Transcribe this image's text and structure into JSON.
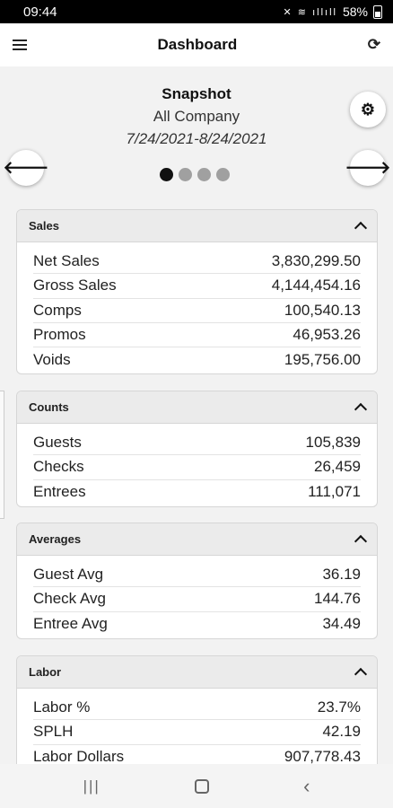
{
  "status_bar": {
    "time": "09:44",
    "icons": "✕ 📶 ıllıll",
    "battery": "58%"
  },
  "app_bar": {
    "title": "Dashboard",
    "menu_icon": "hamburger-icon",
    "refresh_icon": "refresh-icon"
  },
  "snapshot": {
    "title": "Snapshot",
    "company": "All Company",
    "date_range": "7/24/2021-8/24/2021"
  },
  "pager": {
    "total": 4,
    "active": 0
  },
  "cards": [
    {
      "title": "Sales",
      "rows": [
        {
          "label": "Net Sales",
          "value": "3,830,299.50"
        },
        {
          "label": "Gross Sales",
          "value": "4,144,454.16"
        },
        {
          "label": "Comps",
          "value": "100,540.13"
        },
        {
          "label": "Promos",
          "value": "46,953.26"
        },
        {
          "label": "Voids",
          "value": "195,756.00"
        }
      ]
    },
    {
      "title": "Counts",
      "rows": [
        {
          "label": "Guests",
          "value": "105,839"
        },
        {
          "label": "Checks",
          "value": "26,459"
        },
        {
          "label": "Entrees",
          "value": "111,071"
        }
      ]
    },
    {
      "title": "Averages",
      "rows": [
        {
          "label": "Guest Avg",
          "value": "36.19"
        },
        {
          "label": "Check Avg",
          "value": "144.76"
        },
        {
          "label": "Entree Avg",
          "value": "34.49"
        }
      ]
    },
    {
      "title": "Labor",
      "rows": [
        {
          "label": "Labor %",
          "value": "23.7%"
        },
        {
          "label": "SPLH",
          "value": "42.19"
        },
        {
          "label": "Labor Dollars",
          "value": "907,778.43"
        }
      ]
    }
  ],
  "nav": {
    "recents_icon": "recents-icon",
    "home_icon": "home-icon",
    "back_icon": "back-icon"
  }
}
